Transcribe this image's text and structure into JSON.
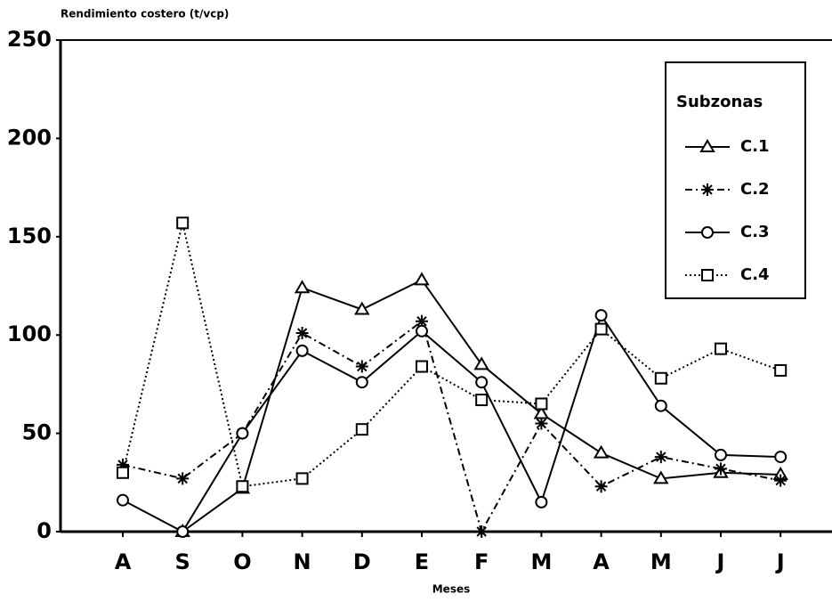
{
  "chart_data": {
    "type": "line",
    "title": "Rendimiento costero (t/vcp)",
    "x_label": "Meses",
    "legend_title": "Subzonas",
    "legend": "upper right",
    "categories": [
      "A",
      "S",
      "O",
      "N",
      "D",
      "E",
      "F",
      "M",
      "A",
      "M",
      "J",
      "J"
    ],
    "ylim": [
      0,
      250
    ],
    "yticks": [
      0,
      50,
      100,
      150,
      200,
      250
    ],
    "series": [
      {
        "name": "C.1",
        "color": "#000000",
        "marker": "triangle",
        "dash": "solid",
        "values": [
          null,
          0,
          22,
          124,
          113,
          128,
          85,
          60,
          40,
          27,
          30,
          29
        ]
      },
      {
        "name": "C.2",
        "color": "#000000",
        "marker": "asterisk",
        "dash": "dashdot",
        "values": [
          34,
          27,
          50,
          101,
          84,
          107,
          0,
          55,
          23,
          38,
          32,
          26
        ]
      },
      {
        "name": "C.3",
        "color": "#000000",
        "marker": "circle",
        "dash": "solid",
        "values": [
          16,
          0,
          50,
          92,
          76,
          102,
          76,
          15,
          110,
          64,
          39,
          38
        ]
      },
      {
        "name": "C.4",
        "color": "#000000",
        "marker": "square",
        "dash": "dotted",
        "values": [
          30,
          157,
          23,
          27,
          52,
          84,
          67,
          65,
          103,
          78,
          93,
          82
        ]
      }
    ]
  }
}
